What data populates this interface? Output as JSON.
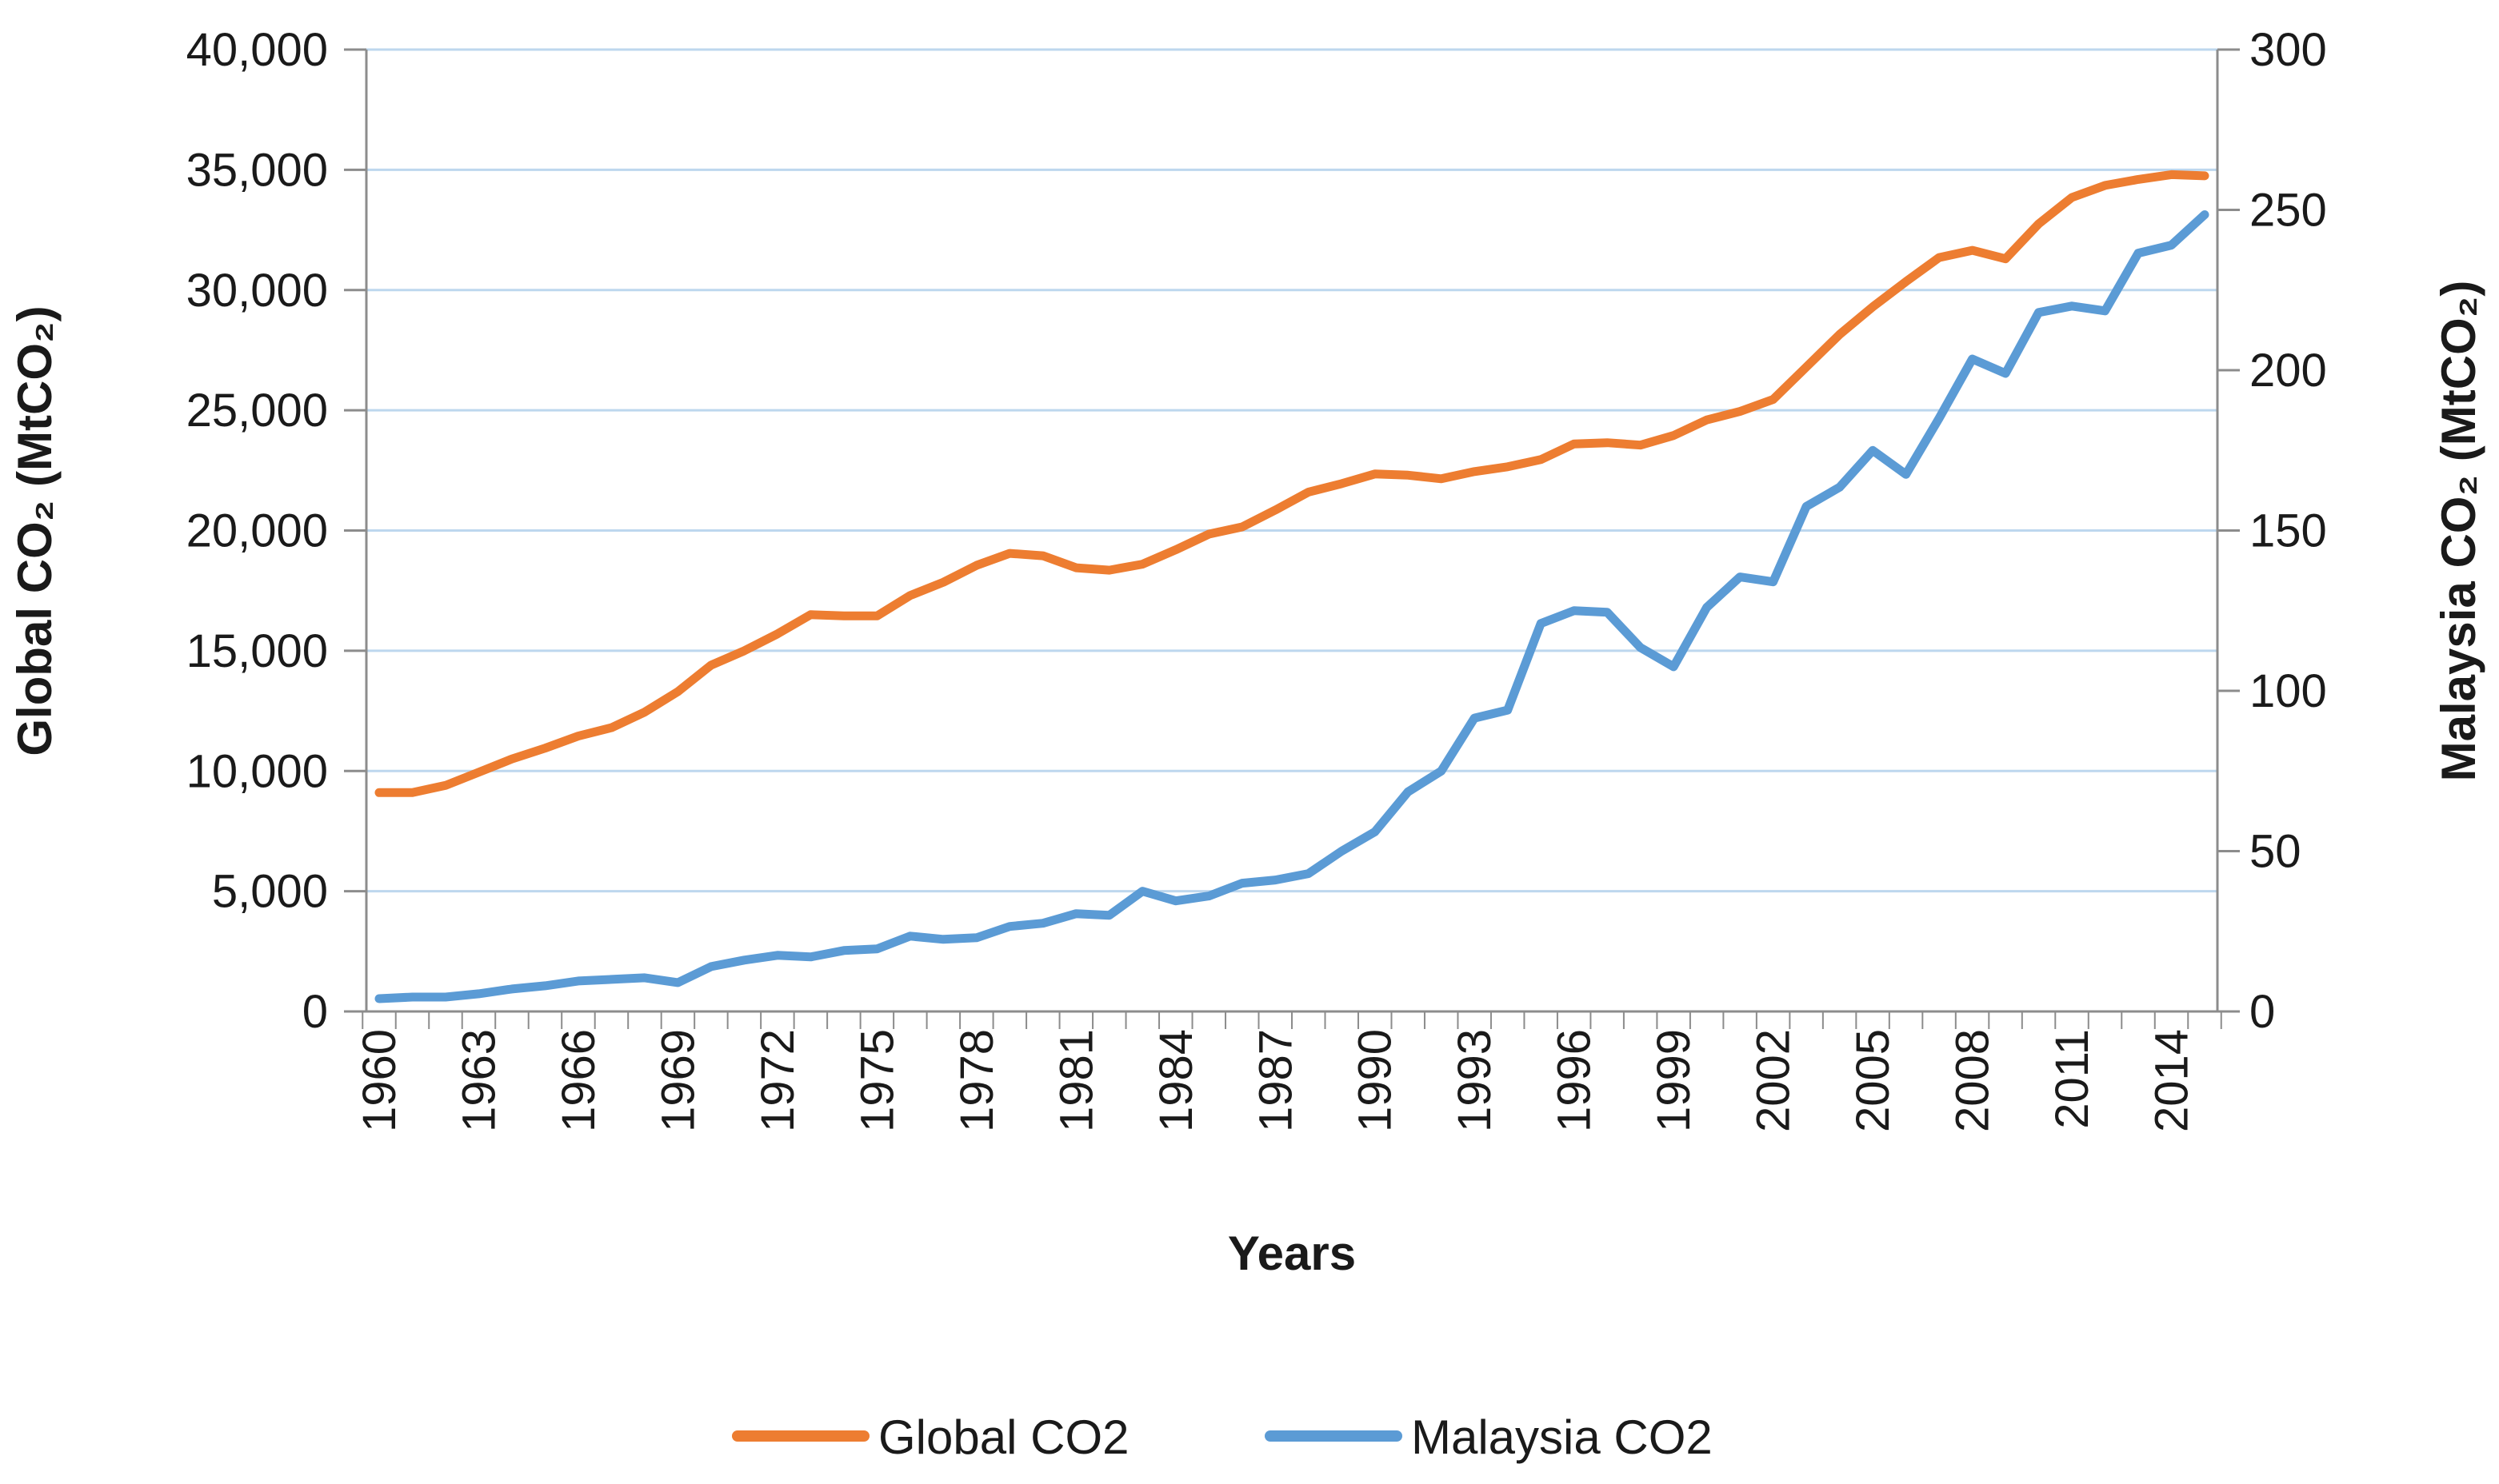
{
  "chart_data": {
    "type": "line",
    "title": "",
    "xlabel": "Years",
    "ylabel_left": "Global CO₂ (MtCO₂)",
    "ylabel_right": "Malaysia CO₂ (MtCO₂)",
    "ylim_left": [
      0,
      40000
    ],
    "ylim_right": [
      0,
      300
    ],
    "yticks_left": [
      "0",
      "5,000",
      "10,000",
      "15,000",
      "20,000",
      "25,000",
      "30,000",
      "35,000",
      "40,000"
    ],
    "yticks_right": [
      "0",
      "50",
      "100",
      "150",
      "200",
      "250",
      "300"
    ],
    "x": [
      1960,
      1961,
      1962,
      1963,
      1964,
      1965,
      1966,
      1967,
      1968,
      1969,
      1970,
      1971,
      1972,
      1973,
      1974,
      1975,
      1976,
      1977,
      1978,
      1979,
      1980,
      1981,
      1982,
      1983,
      1984,
      1985,
      1986,
      1987,
      1988,
      1989,
      1990,
      1991,
      1992,
      1993,
      1994,
      1995,
      1996,
      1997,
      1998,
      1999,
      2000,
      2001,
      2002,
      2003,
      2004,
      2005,
      2006,
      2007,
      2008,
      2009,
      2010,
      2011,
      2012,
      2013,
      2014,
      2015
    ],
    "xtick_labels": [
      "1960",
      "1963",
      "1966",
      "1969",
      "1972",
      "1975",
      "1978",
      "1981",
      "1984",
      "1987",
      "1990",
      "1993",
      "1996",
      "1999",
      "2002",
      "2005",
      "2008",
      "2011",
      "2014"
    ],
    "grid": true,
    "legend_position": "bottom",
    "series": [
      {
        "name": "Global CO2",
        "axis": "left",
        "color": "#ED7D31",
        "values": [
          9100,
          9100,
          9400,
          9950,
          10500,
          10950,
          11450,
          11800,
          12450,
          13300,
          14400,
          15000,
          15700,
          16500,
          16450,
          16450,
          17300,
          17850,
          18550,
          19050,
          18950,
          18450,
          18350,
          18600,
          19200,
          19850,
          20150,
          20850,
          21600,
          21950,
          22350,
          22300,
          22150,
          22450,
          22650,
          22950,
          23600,
          23650,
          23550,
          23950,
          24600,
          24950,
          25450,
          26800,
          28150,
          29300,
          30350,
          31350,
          31650,
          31300,
          32750,
          33850,
          34350,
          34600,
          34800,
          34750
        ]
      },
      {
        "name": "Malaysia CO2",
        "axis": "right",
        "color": "#5B9BD5",
        "values": [
          4,
          4.5,
          4.5,
          5.5,
          7,
          8,
          9.5,
          10,
          10.5,
          9,
          14,
          16,
          17.5,
          17,
          19,
          19.5,
          23.5,
          22.5,
          23,
          26.5,
          27.5,
          30.5,
          30,
          37.5,
          34.5,
          36,
          40,
          41,
          43,
          50,
          56,
          68.5,
          75,
          91.5,
          94,
          121,
          125,
          124.5,
          113.5,
          107.5,
          126,
          135.5,
          134,
          157.5,
          163.5,
          175,
          167.5,
          185,
          203.5,
          199,
          218,
          220,
          218.5,
          236.5,
          239,
          248.5
        ]
      }
    ]
  }
}
